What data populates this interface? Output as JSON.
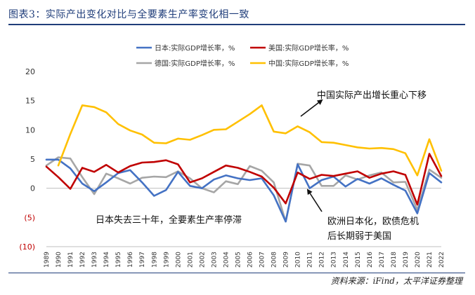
{
  "header": {
    "title": "图表3：实际产出变化对比与全要素生产率变化相一致"
  },
  "footer": {
    "source": "资料来源：iFind，太平洋证券整理"
  },
  "chart_data": {
    "type": "line",
    "title": "",
    "xlabel": "",
    "ylabel": "",
    "ylim": [
      -10,
      20
    ],
    "y_ticks": [
      {
        "value": 20,
        "label": "20"
      },
      {
        "value": 15,
        "label": "15"
      },
      {
        "value": 10,
        "label": "10"
      },
      {
        "value": 5,
        "label": "5"
      },
      {
        "value": 0,
        "label": "0"
      },
      {
        "value": -5,
        "label": "(5)"
      },
      {
        "value": -10,
        "label": "(10)"
      }
    ],
    "x": [
      "1989",
      "1990",
      "1991",
      "1992",
      "1993",
      "1994",
      "1995",
      "1996",
      "1997",
      "1998",
      "1999",
      "2000",
      "2001",
      "2002",
      "2003",
      "2004",
      "2005",
      "2006",
      "2007",
      "2008",
      "2009",
      "2010",
      "2011",
      "2012",
      "2013",
      "2014",
      "2015",
      "2016",
      "2017",
      "2018",
      "2019",
      "2020",
      "2021",
      "2022"
    ],
    "series": [
      {
        "name": "日本:实际GDP增长率，%",
        "color": "#4472c4",
        "values": [
          4.9,
          4.9,
          3.4,
          0.8,
          -0.5,
          1.0,
          2.6,
          3.1,
          1.0,
          -1.3,
          -0.3,
          2.8,
          0.4,
          0.0,
          1.5,
          2.2,
          1.7,
          1.4,
          1.7,
          -1.2,
          -5.7,
          4.1,
          0.0,
          1.4,
          2.0,
          0.3,
          1.6,
          0.8,
          1.7,
          0.6,
          -0.4,
          -4.3,
          2.6,
          1.0
        ]
      },
      {
        "name": "美国:实际GDP增长率，%",
        "color": "#c00000",
        "values": [
          3.7,
          1.9,
          -0.1,
          3.5,
          2.8,
          4.0,
          2.7,
          3.8,
          4.4,
          4.5,
          4.8,
          4.1,
          1.0,
          1.7,
          2.8,
          3.9,
          3.5,
          2.8,
          2.0,
          0.1,
          -2.6,
          2.7,
          1.6,
          2.3,
          2.1,
          2.5,
          2.9,
          1.8,
          2.5,
          2.9,
          2.3,
          -2.8,
          5.9,
          2.1
        ]
      },
      {
        "name": "德国:实际GDP增长率，%",
        "color": "#a6a6a6",
        "values": [
          3.9,
          5.3,
          5.1,
          1.9,
          -1.0,
          2.5,
          1.7,
          0.8,
          1.8,
          2.0,
          1.9,
          2.9,
          1.7,
          0.0,
          -0.7,
          1.2,
          0.7,
          3.8,
          3.0,
          1.0,
          -5.7,
          4.2,
          3.9,
          0.4,
          0.4,
          2.2,
          1.5,
          2.2,
          2.7,
          1.0,
          1.1,
          -3.7,
          3.2,
          1.8
        ]
      },
      {
        "name": "中国:实际GDP增长率，%",
        "color": "#ffc000",
        "start_index": 1,
        "values": [
          null,
          3.9,
          9.3,
          14.2,
          13.9,
          13.0,
          11.0,
          9.9,
          9.2,
          7.8,
          7.7,
          8.5,
          8.3,
          9.1,
          10.0,
          10.1,
          11.4,
          12.7,
          14.2,
          9.7,
          9.4,
          10.6,
          9.6,
          7.9,
          7.8,
          7.4,
          7.0,
          6.8,
          6.9,
          6.7,
          6.0,
          2.2,
          8.4,
          3.0
        ]
      }
    ],
    "annotations": [
      {
        "id": "china-shift",
        "text": "中国实际产出增长重心下移"
      },
      {
        "id": "japan-stagnation",
        "text": "日本失去三十年，全要素生产率停滞"
      },
      {
        "id": "europe-japanization-1",
        "text": "欧洲日本化，欧债危机"
      },
      {
        "id": "europe-japanization-2",
        "text": "后长期弱于美国"
      }
    ],
    "legend_position": "top"
  }
}
